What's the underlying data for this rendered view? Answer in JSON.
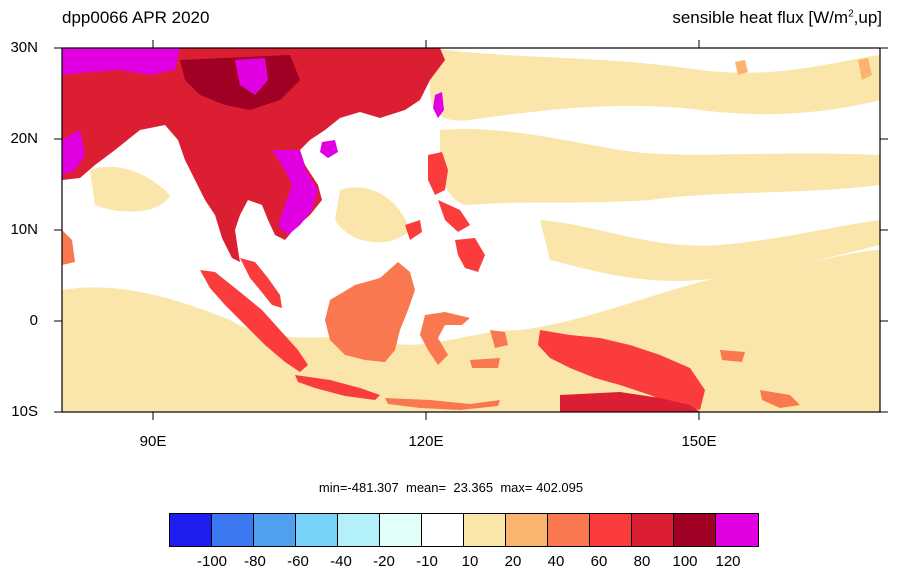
{
  "title_left": "dpp0066 APR 2020",
  "title_right": {
    "prefix": "sensible heat flux [W/m",
    "sup": "2",
    "suffix": ",up]"
  },
  "map": {
    "lat_labels": [
      "30N",
      "20N",
      "10N",
      "0",
      "10S"
    ],
    "lon_labels": [
      "90E",
      "120E",
      "150E"
    ],
    "lon_range": [
      80,
      170
    ],
    "lat_range": [
      -10,
      30
    ]
  },
  "stats": {
    "min_label": "min=",
    "min": "-481.307",
    "mean_label": "mean=",
    "mean": "23.365",
    "max_label": "max=",
    "max": "402.095"
  },
  "colorbar": {
    "colors": [
      "#1e1ef0",
      "#3c78f0",
      "#50a0f0",
      "#78d2fa",
      "#b4f0fa",
      "#e1fffa",
      "#ffffff",
      "#fae6aa",
      "#fab46e",
      "#fa7850",
      "#fa3c3c",
      "#dc1e32",
      "#a00023",
      "#e100e1"
    ],
    "labels": [
      "-100",
      "-80",
      "-60",
      "-40",
      "-20",
      "-10",
      "10",
      "20",
      "40",
      "60",
      "80",
      "100",
      "120"
    ]
  },
  "colors": {
    "ocean_low": "#fae6aa",
    "land_mid": "#fa7850",
    "land_high": "#dc1e32",
    "magenta": "#e100e1"
  }
}
